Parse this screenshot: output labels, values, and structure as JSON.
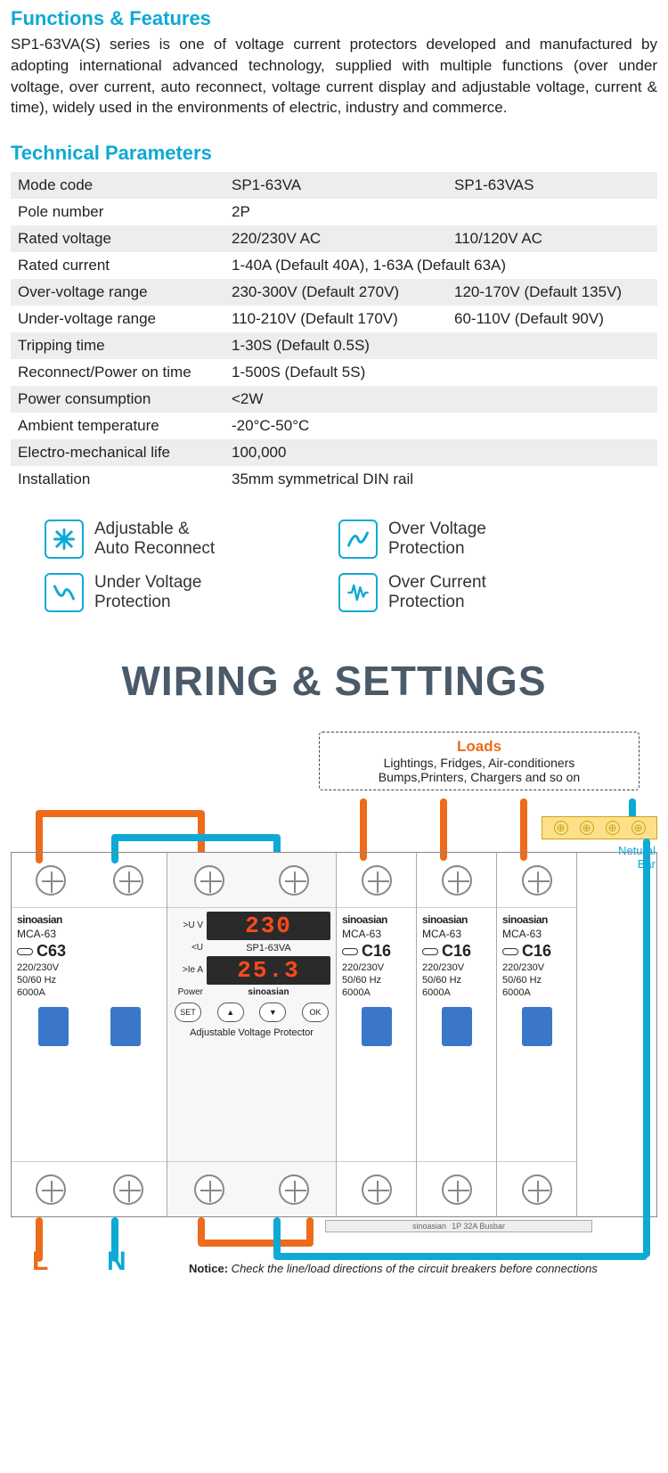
{
  "sections": {
    "featuresTitle": "Functions & Features",
    "featuresDesc": "SP1-63VA(S) series is one of voltage current protectors developed and manufactured by adopting international advanced technology, supplied with multiple functions (over under voltage, over current, auto reconnect, voltage current display and adjustable voltage, current & time), widely used in the environments of electric, industry and commerce.",
    "paramsTitle": "Technical Parameters",
    "wiringTitle": "WIRING & SETTINGS"
  },
  "params": {
    "rows": [
      {
        "label": "Mode code",
        "v1": "SP1-63VA",
        "v2": "SP1-63VAS"
      },
      {
        "label": "Pole number",
        "v1": "2P",
        "v2": ""
      },
      {
        "label": "Rated voltage",
        "v1": "220/230V AC",
        "v2": "110/120V AC"
      },
      {
        "label": "Rated current",
        "v1": "1-40A (Default 40A), 1-63A (Default 63A)",
        "v2": ""
      },
      {
        "label": "Over-voltage range",
        "v1": "230-300V (Default 270V)",
        "v2": "120-170V (Default 135V)"
      },
      {
        "label": "Under-voltage range",
        "v1": "110-210V (Default 170V)",
        "v2": "60-110V (Default 90V)"
      },
      {
        "label": "Tripping time",
        "v1": "1-30S (Default 0.5S)",
        "v2": ""
      },
      {
        "label": "Reconnect/Power on time",
        "v1": "1-500S (Default 5S)",
        "v2": ""
      },
      {
        "label": "Power consumption",
        "v1": "<2W",
        "v2": ""
      },
      {
        "label": "Ambient temperature",
        "v1": "-20°C-50°C",
        "v2": ""
      },
      {
        "label": "Electro-mechanical life",
        "v1": "100,000",
        "v2": ""
      },
      {
        "label": "Installation",
        "v1": "35mm symmetrical DIN rail",
        "v2": ""
      }
    ]
  },
  "featureIcons": [
    {
      "icon": "asterisk",
      "t1": "Adjustable &",
      "t2": "Auto Reconnect"
    },
    {
      "icon": "overV",
      "t1": "Over Voltage",
      "t2": "Protection"
    },
    {
      "icon": "underV",
      "t1": "Under Voltage",
      "t2": "Protection"
    },
    {
      "icon": "overC",
      "t1": "Over Current",
      "t2": "Protection"
    }
  ],
  "loads": {
    "title": "Loads",
    "line1": "Lightings, Fridges, Air-conditioners",
    "line2": "Bumps,Printers, Chargers and so on"
  },
  "neutral": {
    "label1": "Netural",
    "label2": "Bar"
  },
  "breaker": {
    "brand": "sinoasian",
    "model": "MCA-63",
    "c63": "C63",
    "c16": "C16",
    "spec1": "220/230V",
    "spec2": "50/60 Hz",
    "spec3": "6000A"
  },
  "main": {
    "model": "SP1-63VA",
    "disp1": "230",
    "disp2": "25.3",
    "lbl_u_o": ">U",
    "lbl_u_u": "<U",
    "lbl_ie": ">Ie",
    "v": "V",
    "a": "A",
    "power": "Power",
    "brand": "sinoasian",
    "set": "SET",
    "ok": "OK",
    "up": "▲",
    "down": "▼",
    "subtitle": "Adjustable Voltage Protector"
  },
  "busbar": {
    "brand": "sinoasian",
    "label": "1P 32A Busbar"
  },
  "ln": {
    "L": "L",
    "N": "N"
  },
  "notice": {
    "b": "Notice:",
    "t": " Check the line/load directions of the circuit breakers before connections"
  },
  "colors": {
    "accent": "#0ea9d4",
    "orange": "#ed6b1a"
  }
}
